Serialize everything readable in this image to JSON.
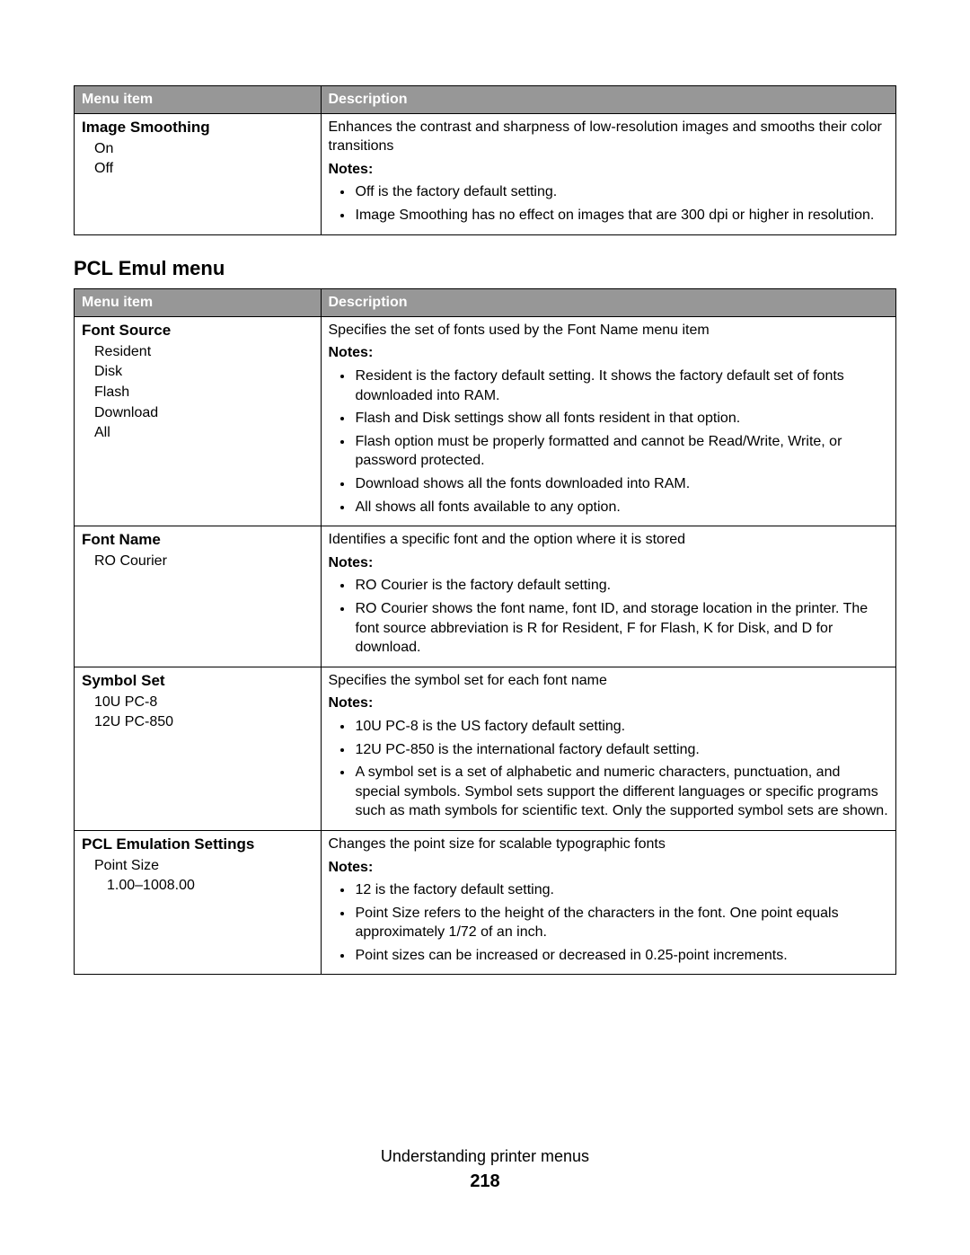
{
  "table1": {
    "headers": {
      "menu": "Menu item",
      "desc": "Description"
    },
    "row1": {
      "title": "Image Smoothing",
      "opts": [
        "On",
        "Off"
      ],
      "desc": "Enhances the contrast and sharpness of low-resolution images and smooths their color transitions",
      "notes_label": "Notes:",
      "notes": [
        "Off is the factory default setting.",
        "Image Smoothing has no effect on images that are 300 dpi or higher in resolution."
      ]
    }
  },
  "section_title": "PCL Emul menu",
  "table2": {
    "headers": {
      "menu": "Menu item",
      "desc": "Description"
    },
    "rows": [
      {
        "title": "Font Source",
        "opts": [
          "Resident",
          "Disk",
          "Flash",
          "Download",
          "All"
        ],
        "desc": "Specifies the set of fonts used by the Font Name menu item",
        "notes_label": "Notes:",
        "notes": [
          "Resident is the factory default setting. It shows the factory default set of fonts downloaded into RAM.",
          "Flash and Disk settings show all fonts resident in that option.",
          "Flash option must be properly formatted and cannot be Read/Write, Write, or password protected.",
          "Download shows all the fonts downloaded into RAM.",
          "All shows all fonts available to any option."
        ]
      },
      {
        "title": "Font Name",
        "opts": [
          "RO Courier"
        ],
        "desc": "Identifies a specific font and the option where it is stored",
        "notes_label": "Notes:",
        "notes": [
          "RO Courier is the factory default setting.",
          "RO Courier shows the font name, font ID, and storage location in the printer. The font source abbreviation is R for Resident, F for Flash, K for Disk, and D for download."
        ]
      },
      {
        "title": "Symbol Set",
        "opts": [
          "10U PC-8",
          "12U PC-850"
        ],
        "desc": "Specifies the symbol set for each font name",
        "notes_label": "Notes:",
        "notes": [
          "10U PC-8 is the US factory default setting.",
          "12U PC-850 is the international factory default setting.",
          "A symbol set is a set of alphabetic and numeric characters, punctuation, and special symbols. Symbol sets support the different languages or specific programs such as math symbols for scientific text. Only the supported symbol sets are shown."
        ]
      },
      {
        "title": "PCL Emulation Settings",
        "opts": [
          "Point Size"
        ],
        "subopts": [
          "1.00–1008.00"
        ],
        "desc": "Changes the point size for scalable typographic fonts",
        "notes_label": "Notes:",
        "notes": [
          "12 is the factory default setting.",
          "Point Size refers to the height of the characters in the font. One point equals approximately 1/72 of an inch.",
          "Point sizes can be increased or decreased in 0.25-point increments."
        ]
      }
    ]
  },
  "footer": {
    "title": "Understanding printer menus",
    "page": "218"
  }
}
